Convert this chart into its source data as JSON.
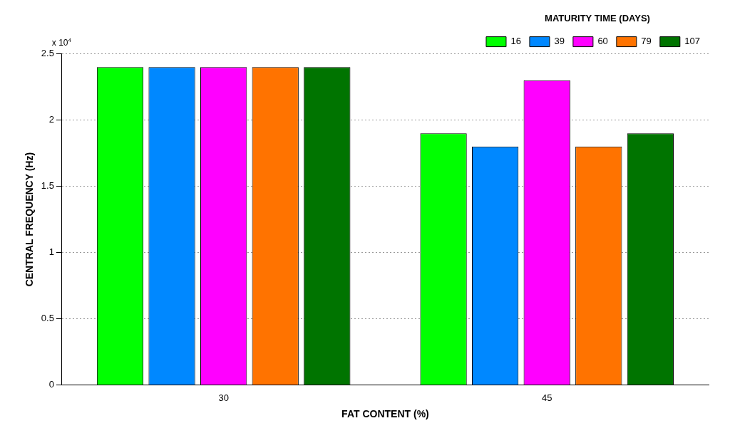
{
  "chart_data": {
    "type": "bar",
    "xlabel": "FAT CONTENT (%)",
    "ylabel": "CENTRAL FREQUENCY (Hz)",
    "legend_title": "MATURITY TIME (DAYS)",
    "annotations": [
      "x 10$^{4}$"
    ],
    "categories": [
      "30",
      "45"
    ],
    "series": [
      {
        "name": "16",
        "color": "#00ff00",
        "values": [
          2.4,
          1.9
        ]
      },
      {
        "name": "39",
        "color": "#0088ff",
        "values": [
          2.4,
          1.8
        ]
      },
      {
        "name": "60",
        "color": "#ff00ff",
        "values": [
          2.4,
          2.3
        ]
      },
      {
        "name": "79",
        "color": "#ff7300",
        "values": [
          2.4,
          1.8
        ]
      },
      {
        "name": "107",
        "color": "#007400",
        "values": [
          2.4,
          1.9
        ]
      }
    ],
    "ylim": [
      0,
      2.5
    ],
    "yticks": [
      0,
      0.5,
      1,
      1.5,
      2,
      2.5
    ],
    "grid": "y",
    "legend": "top right"
  }
}
